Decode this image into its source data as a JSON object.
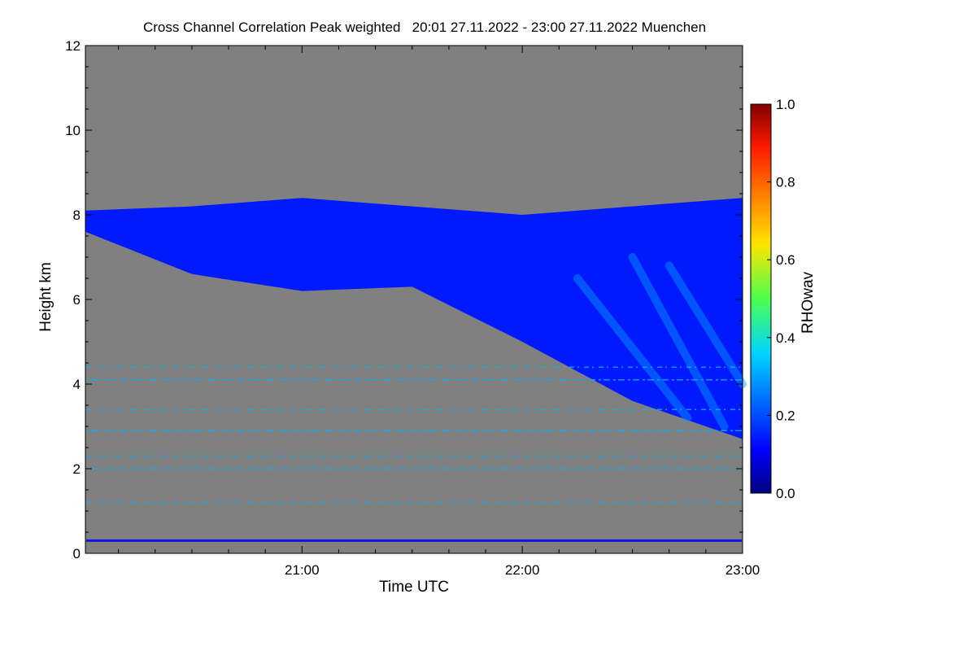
{
  "chart_data": {
    "type": "heatmap",
    "title": "Cross Channel Correlation Peak weighted   20:01 27.11.2022 - 23:00 27.11.2022 Muenchen",
    "xlabel": "Time UTC",
    "ylabel": "Height km",
    "x_start": "20:01",
    "x_end": "23:00",
    "x_ticks": [
      "21:00",
      "22:00",
      "23:00"
    ],
    "y_ticks": [
      "0",
      "2",
      "4",
      "6",
      "8",
      "10",
      "12"
    ],
    "ylim": [
      0,
      12
    ],
    "colorbar": {
      "label": "RHOwav",
      "ticks": [
        "0.0",
        "0.2",
        "0.4",
        "0.6",
        "0.8",
        "1.0"
      ],
      "range": [
        0,
        1
      ],
      "colormap": "jet"
    },
    "background_color": "#808080",
    "cloud_layer": {
      "description_values_time": [
        "20:01",
        "20:30",
        "21:00",
        "21:30",
        "22:00",
        "22:30",
        "23:00"
      ],
      "base_km": [
        7.6,
        6.6,
        6.2,
        6.3,
        5.0,
        3.6,
        2.7
      ],
      "top_km": [
        8.1,
        8.2,
        8.4,
        8.2,
        8.0,
        8.2,
        8.4
      ],
      "typical_value": 0.15
    },
    "noise_layers_km": [
      0.3,
      1.2,
      2.0,
      2.3,
      2.9,
      3.4,
      4.1,
      4.4
    ],
    "noise_value": 0.3
  }
}
